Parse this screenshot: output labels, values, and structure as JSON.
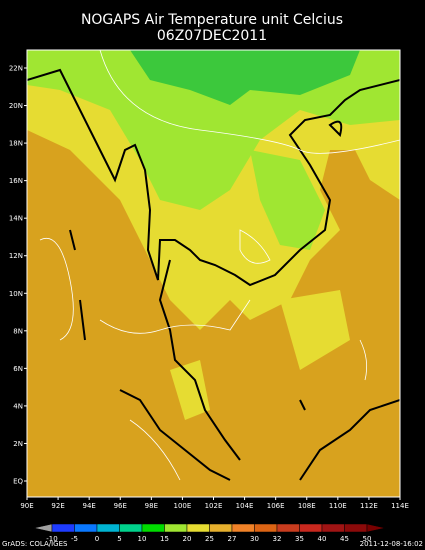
{
  "header": {
    "title": "NOGAPS Air Temperature unit Celcius",
    "subtitle": "06Z07DEC2011"
  },
  "map": {
    "lon_labels": [
      "90E",
      "92E",
      "94E",
      "96E",
      "98E",
      "100E",
      "102E",
      "104E",
      "106E",
      "108E",
      "110E",
      "112E",
      "114E"
    ],
    "lat_labels": [
      "EQ",
      "2N",
      "4N",
      "6N",
      "8N",
      "10N",
      "12N",
      "14N",
      "16N",
      "18N",
      "20N",
      "22N"
    ]
  },
  "colorbar": {
    "labels": [
      "-10",
      "-5",
      "0",
      "5",
      "10",
      "15",
      "20",
      "25",
      "27",
      "30",
      "32",
      "35",
      "40",
      "45",
      "50"
    ],
    "colors": [
      "#a0a0a0",
      "#1e3cff",
      "#0a78ff",
      "#00b4d2",
      "#00d28c",
      "#00dc00",
      "#a0e632",
      "#e6dc32",
      "#e6af2d",
      "#f08228",
      "#dc6414",
      "#c83c1e",
      "#c8281e",
      "#a01414",
      "#8c0a0a",
      "#780000"
    ]
  },
  "footer": {
    "left": "GrADS: COLA/IGES",
    "right": "2011-12-08-16:02"
  }
}
